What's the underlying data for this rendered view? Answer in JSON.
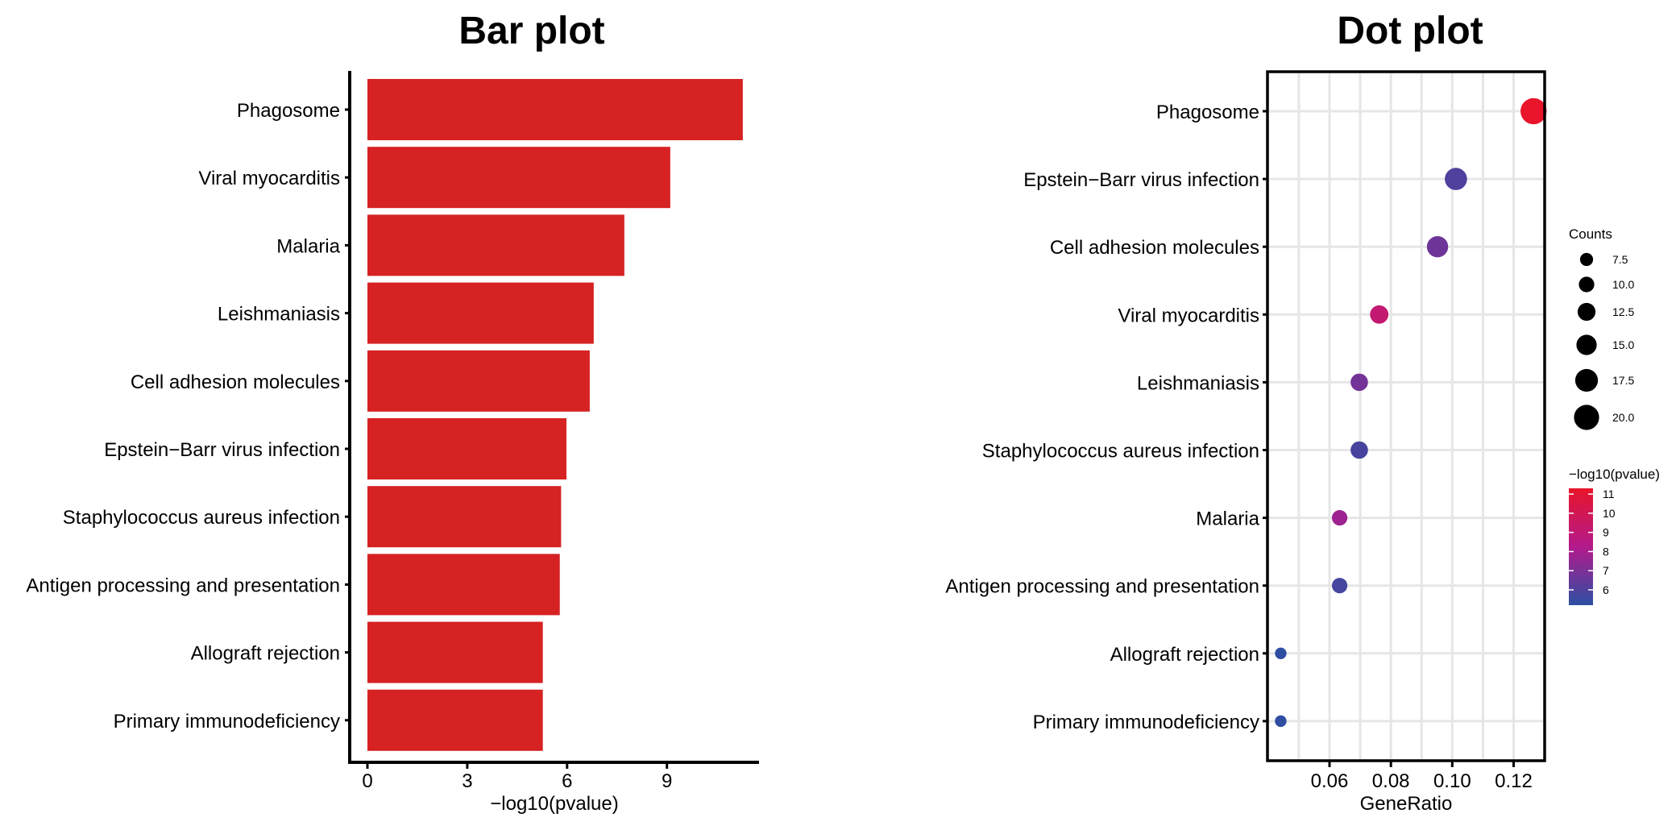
{
  "chart_data": [
    {
      "type": "bar",
      "title": "Bar plot",
      "xlabel": "−log10(pvalue)",
      "ylabel": "",
      "orientation": "horizontal",
      "xlim": [
        -0.6,
        11.9
      ],
      "xticks": [
        0,
        3,
        6,
        9
      ],
      "categories": [
        "Phagosome",
        "Viral myocarditis",
        "Malaria",
        "Leishmaniasis",
        "Cell adhesion molecules",
        "Epstein−Barr virus infection",
        "Staphylococcus aureus infection",
        "Antigen processing and presentation",
        "Allograft rejection",
        "Primary immunodeficiency"
      ],
      "values": [
        11.28,
        9.1,
        7.72,
        6.8,
        6.68,
        5.98,
        5.82,
        5.78,
        5.27,
        5.27
      ],
      "bar_color": "#d62222",
      "grid": false
    },
    {
      "type": "scatter",
      "title": "Dot plot",
      "xlabel": "GeneRatio",
      "ylabel": "",
      "xlim": [
        0.04,
        0.13
      ],
      "xticks": [
        0.06,
        0.08,
        0.1,
        0.12
      ],
      "xtick_labels": [
        "0.06",
        "0.08",
        "0.10",
        "0.12"
      ],
      "categories": [
        "Phagosome",
        "Epstein−Barr virus infection",
        "Cell adhesion molecules",
        "Viral myocarditis",
        "Leishmaniasis",
        "Staphylococcus aureus infection",
        "Malaria",
        "Antigen processing and presentation",
        "Allograft rejection",
        "Primary immunodeficiency"
      ],
      "points": [
        {
          "x": 0.1265,
          "counts": 21,
          "pvalue": 11.28
        },
        {
          "x": 0.1012,
          "counts": 17,
          "pvalue": 5.98
        },
        {
          "x": 0.0952,
          "counts": 16,
          "pvalue": 6.68
        },
        {
          "x": 0.0762,
          "counts": 13,
          "pvalue": 9.1
        },
        {
          "x": 0.0697,
          "counts": 12,
          "pvalue": 6.8
        },
        {
          "x": 0.0697,
          "counts": 12,
          "pvalue": 5.82
        },
        {
          "x": 0.0633,
          "counts": 10,
          "pvalue": 7.72
        },
        {
          "x": 0.0633,
          "counts": 10,
          "pvalue": 5.78
        },
        {
          "x": 0.0441,
          "counts": 6,
          "pvalue": 5.27
        },
        {
          "x": 0.0441,
          "counts": 6,
          "pvalue": 5.27
        }
      ],
      "grid": true,
      "legend": {
        "placement": "right",
        "size_title": "Counts",
        "size_entries": [
          7.5,
          10.0,
          12.5,
          15.0,
          17.5,
          20.0
        ],
        "size_labels": [
          "7.5",
          "10.0",
          "12.5",
          "15.0",
          "17.5",
          "20.0"
        ],
        "color_title": "−log10(pvalue)",
        "color_range": [
          5.2,
          11.3
        ],
        "color_ticks": [
          6,
          7,
          8,
          9,
          10,
          11
        ],
        "color_low": "#2c4fa3",
        "color_mid": "#b31a8c",
        "color_high": "#e8152a"
      }
    }
  ]
}
